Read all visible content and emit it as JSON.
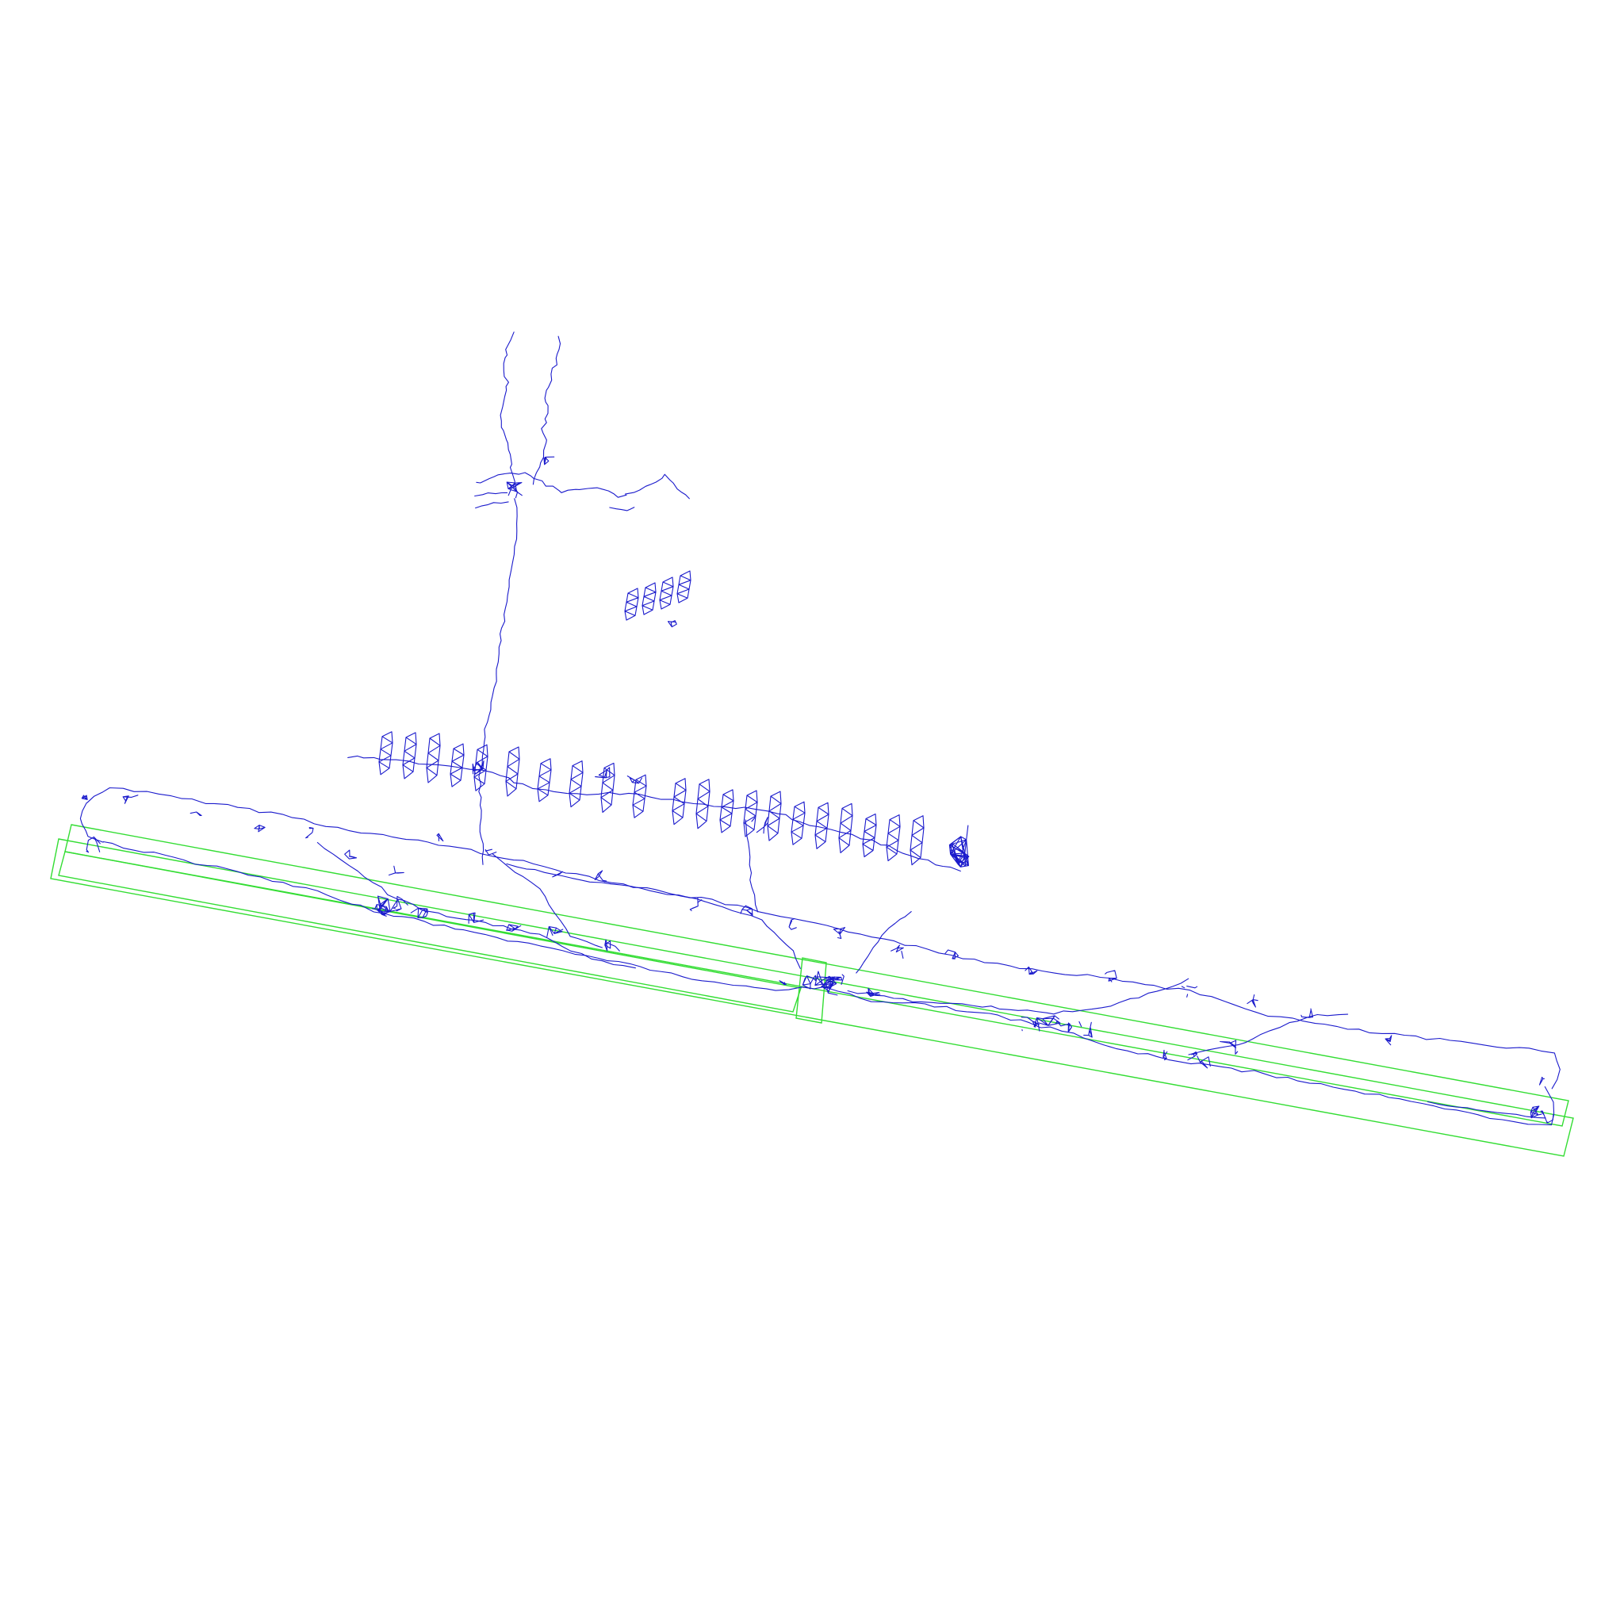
{
  "figure": {
    "description_free": true,
    "colors": {
      "background": "#ffffff",
      "graph_edges": "#1a1acc",
      "bounding_boxes": "#33dd33"
    }
  }
}
